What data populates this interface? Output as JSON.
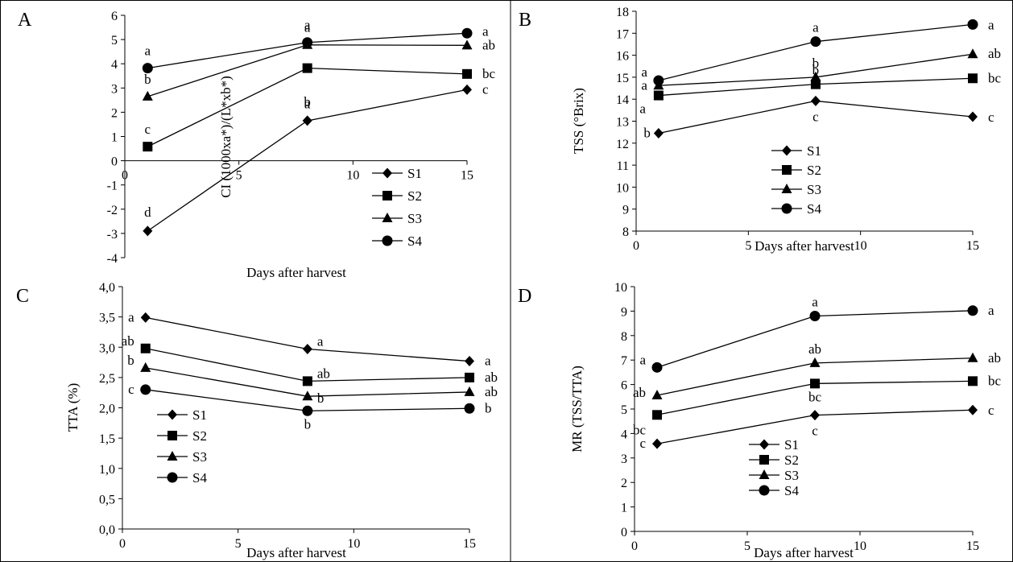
{
  "figure": {
    "series_names": [
      "S1",
      "S2",
      "S3",
      "S4"
    ],
    "colors": {
      "line": "#000000",
      "background": "#ffffff"
    }
  },
  "chart_data": [
    {
      "panel": "A",
      "type": "line",
      "ylabel": "CI (1000xa*)/(L*xb*)",
      "xlabel": "Days after harvest",
      "xlim": [
        0,
        15
      ],
      "ylim": [
        -4,
        6
      ],
      "x_ticks": [
        "0",
        "5",
        "10",
        "15"
      ],
      "y_ticks": [
        "-4",
        "-3",
        "-2",
        "-1",
        "0",
        "1",
        "2",
        "3",
        "4",
        "5",
        "6"
      ],
      "x": [
        1,
        8,
        15
      ],
      "legend_position": "bottom-right",
      "series": [
        {
          "name": "S1",
          "marker": "diamond",
          "values": [
            -2.9,
            1.65,
            2.93
          ],
          "labels": [
            "d",
            "b",
            "c"
          ]
        },
        {
          "name": "S2",
          "marker": "square",
          "values": [
            0.58,
            3.82,
            3.58
          ],
          "labels": [
            "c",
            "a",
            "bc"
          ]
        },
        {
          "name": "S3",
          "marker": "triangle",
          "values": [
            2.65,
            4.78,
            4.76
          ],
          "labels": [
            "b",
            "a",
            "ab"
          ]
        },
        {
          "name": "S4",
          "marker": "circle",
          "values": [
            3.82,
            4.88,
            5.26
          ],
          "labels": [
            "a",
            "a",
            "a"
          ]
        }
      ]
    },
    {
      "panel": "B",
      "type": "line",
      "ylabel": "TSS (°Brix)",
      "xlabel": "Days after harvest",
      "xlim": [
        0,
        15
      ],
      "ylim": [
        8,
        18
      ],
      "x_ticks": [
        "0",
        "5",
        "10",
        "15"
      ],
      "y_ticks": [
        "8",
        "9",
        "10",
        "11",
        "12",
        "13",
        "14",
        "15",
        "16",
        "17",
        "18"
      ],
      "x": [
        1,
        8,
        15
      ],
      "legend_position": "bottom-center",
      "series": [
        {
          "name": "S1",
          "marker": "diamond",
          "values": [
            12.45,
            13.92,
            13.2
          ],
          "labels": [
            "b",
            "c",
            "c"
          ]
        },
        {
          "name": "S2",
          "marker": "square",
          "values": [
            14.17,
            14.68,
            14.95
          ],
          "labels": [
            "a",
            "b",
            "bc"
          ]
        },
        {
          "name": "S3",
          "marker": "triangle",
          "values": [
            14.62,
            15.0,
            16.05
          ],
          "labels": [
            "a",
            "b",
            "ab"
          ]
        },
        {
          "name": "S4",
          "marker": "circle",
          "values": [
            14.85,
            16.62,
            17.4
          ],
          "labels": [
            "a",
            "a",
            "a"
          ]
        }
      ]
    },
    {
      "panel": "C",
      "type": "line",
      "ylabel": "TTA (%)",
      "xlabel": "Days after harvest",
      "xlim": [
        0,
        15
      ],
      "ylim": [
        0,
        4
      ],
      "x_ticks": [
        "0",
        "5",
        "10",
        "15"
      ],
      "y_ticks": [
        "0,0",
        "0,5",
        "1,0",
        "1,5",
        "2,0",
        "2,5",
        "3,0",
        "3,5",
        "4,0"
      ],
      "x": [
        1,
        8,
        15
      ],
      "legend_position": "bottom-left",
      "series": [
        {
          "name": "S1",
          "marker": "diamond",
          "values": [
            3.49,
            2.97,
            2.77
          ],
          "labels": [
            "a",
            "a",
            "a"
          ]
        },
        {
          "name": "S2",
          "marker": "square",
          "values": [
            2.98,
            2.44,
            2.5
          ],
          "labels": [
            "ab",
            "ab",
            "ab"
          ]
        },
        {
          "name": "S3",
          "marker": "triangle",
          "values": [
            2.66,
            2.19,
            2.26
          ],
          "labels": [
            "b",
            "b",
            "ab"
          ]
        },
        {
          "name": "S4",
          "marker": "circle",
          "values": [
            2.3,
            1.95,
            1.99
          ],
          "labels": [
            "c",
            "b",
            "b"
          ]
        }
      ]
    },
    {
      "panel": "D",
      "type": "line",
      "ylabel": "MR (TSS/TTA)",
      "xlabel": "Days after harvest",
      "xlim": [
        0,
        15
      ],
      "ylim": [
        0,
        10
      ],
      "x_ticks": [
        "0",
        "5",
        "10",
        "15"
      ],
      "y_ticks": [
        "0",
        "1",
        "2",
        "3",
        "4",
        "5",
        "6",
        "7",
        "8",
        "9",
        "10"
      ],
      "x": [
        1,
        8,
        15
      ],
      "legend_position": "bottom-center",
      "series": [
        {
          "name": "S1",
          "marker": "diamond",
          "values": [
            3.58,
            4.75,
            4.96
          ],
          "labels": [
            "c",
            "c",
            "c"
          ]
        },
        {
          "name": "S2",
          "marker": "square",
          "values": [
            4.76,
            6.04,
            6.14
          ],
          "labels": [
            "bc",
            "bc",
            "bc"
          ]
        },
        {
          "name": "S3",
          "marker": "triangle",
          "values": [
            5.56,
            6.88,
            7.08
          ],
          "labels": [
            "ab",
            "ab",
            "ab"
          ]
        },
        {
          "name": "S4",
          "marker": "circle",
          "values": [
            6.7,
            8.8,
            9.02
          ],
          "labels": [
            "a",
            "a",
            "a"
          ]
        }
      ]
    }
  ]
}
